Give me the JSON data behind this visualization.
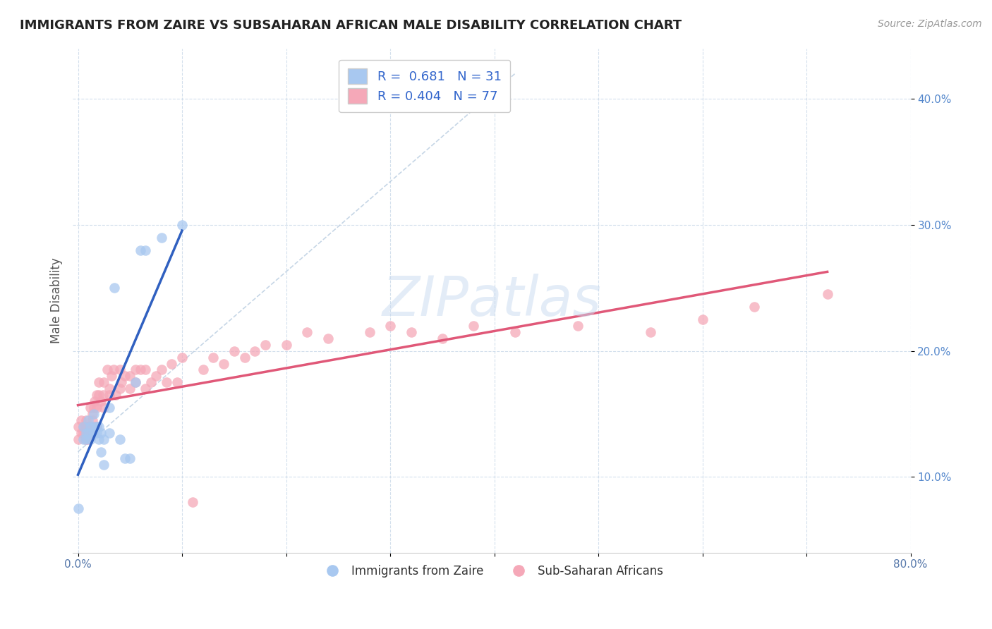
{
  "title": "IMMIGRANTS FROM ZAIRE VS SUBSAHARAN AFRICAN MALE DISABILITY CORRELATION CHART",
  "source": "Source: ZipAtlas.com",
  "xlabel": "",
  "ylabel": "Male Disability",
  "xlim": [
    -0.005,
    0.8
  ],
  "ylim": [
    0.04,
    0.44
  ],
  "xticks": [
    0.0,
    0.1,
    0.2,
    0.3,
    0.4,
    0.5,
    0.6,
    0.7,
    0.8
  ],
  "xticklabels": [
    "0.0%",
    "",
    "",
    "",
    "",
    "",
    "",
    "",
    "80.0%"
  ],
  "yticks": [
    0.1,
    0.2,
    0.3,
    0.4
  ],
  "yticklabels": [
    "10.0%",
    "20.0%",
    "30.0%",
    "40.0%"
  ],
  "blue_R": 0.681,
  "blue_N": 31,
  "pink_R": 0.404,
  "pink_N": 77,
  "blue_color": "#a8c8f0",
  "pink_color": "#f5a8b8",
  "blue_line_color": "#3060c0",
  "pink_line_color": "#e05878",
  "diag_line_color": "#b8cce0",
  "legend_blue_label": "Immigrants from Zaire",
  "legend_pink_label": "Sub-Saharan Africans",
  "background_color": "#ffffff",
  "blue_x": [
    0.0,
    0.005,
    0.005,
    0.008,
    0.008,
    0.01,
    0.01,
    0.012,
    0.012,
    0.015,
    0.015,
    0.015,
    0.018,
    0.018,
    0.02,
    0.02,
    0.022,
    0.022,
    0.025,
    0.025,
    0.03,
    0.03,
    0.035,
    0.04,
    0.045,
    0.05,
    0.055,
    0.06,
    0.065,
    0.08,
    0.1
  ],
  "blue_y": [
    0.075,
    0.13,
    0.14,
    0.135,
    0.13,
    0.135,
    0.145,
    0.13,
    0.14,
    0.135,
    0.14,
    0.15,
    0.14,
    0.135,
    0.14,
    0.13,
    0.135,
    0.12,
    0.13,
    0.11,
    0.135,
    0.155,
    0.25,
    0.13,
    0.115,
    0.115,
    0.175,
    0.28,
    0.28,
    0.29,
    0.3
  ],
  "pink_x": [
    0.0,
    0.0,
    0.003,
    0.003,
    0.005,
    0.005,
    0.007,
    0.007,
    0.007,
    0.008,
    0.008,
    0.008,
    0.01,
    0.01,
    0.01,
    0.012,
    0.012,
    0.014,
    0.014,
    0.015,
    0.015,
    0.016,
    0.018,
    0.018,
    0.018,
    0.02,
    0.02,
    0.022,
    0.024,
    0.025,
    0.025,
    0.028,
    0.03,
    0.03,
    0.032,
    0.034,
    0.036,
    0.04,
    0.04,
    0.042,
    0.045,
    0.05,
    0.05,
    0.055,
    0.055,
    0.06,
    0.065,
    0.065,
    0.07,
    0.075,
    0.08,
    0.085,
    0.09,
    0.095,
    0.1,
    0.11,
    0.12,
    0.13,
    0.14,
    0.15,
    0.16,
    0.17,
    0.18,
    0.2,
    0.22,
    0.24,
    0.28,
    0.3,
    0.32,
    0.35,
    0.38,
    0.42,
    0.48,
    0.55,
    0.6,
    0.65,
    0.72
  ],
  "pink_y": [
    0.13,
    0.14,
    0.135,
    0.145,
    0.14,
    0.135,
    0.13,
    0.14,
    0.135,
    0.14,
    0.145,
    0.13,
    0.135,
    0.14,
    0.13,
    0.155,
    0.14,
    0.15,
    0.145,
    0.155,
    0.14,
    0.16,
    0.155,
    0.165,
    0.14,
    0.165,
    0.175,
    0.16,
    0.165,
    0.175,
    0.155,
    0.185,
    0.165,
    0.17,
    0.18,
    0.185,
    0.165,
    0.185,
    0.17,
    0.175,
    0.18,
    0.18,
    0.17,
    0.185,
    0.175,
    0.185,
    0.17,
    0.185,
    0.175,
    0.18,
    0.185,
    0.175,
    0.19,
    0.175,
    0.195,
    0.08,
    0.185,
    0.195,
    0.19,
    0.2,
    0.195,
    0.2,
    0.205,
    0.205,
    0.215,
    0.21,
    0.215,
    0.22,
    0.215,
    0.21,
    0.22,
    0.215,
    0.22,
    0.215,
    0.225,
    0.235,
    0.245
  ]
}
